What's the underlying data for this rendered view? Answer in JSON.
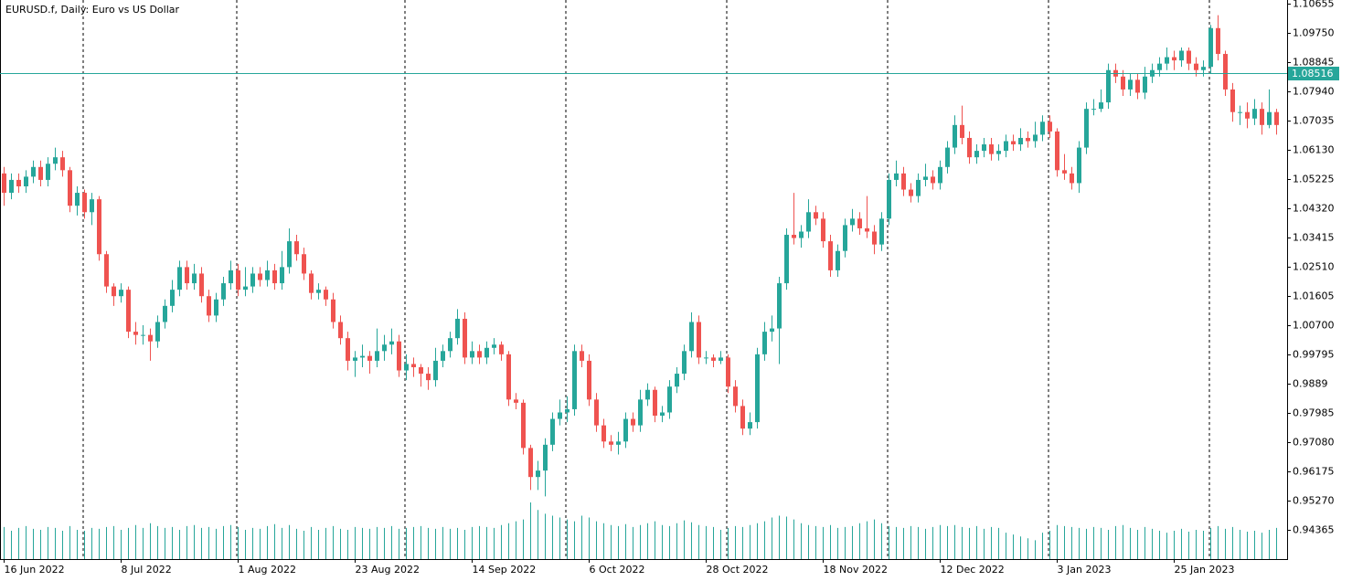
{
  "chart_data": {
    "type": "candlestick",
    "title": "EURUSD.f, Daily:  Euro vs US Dollar",
    "categories": [
      "16 Jun 2022",
      null,
      null,
      null,
      null,
      null,
      null,
      null,
      null,
      null,
      null,
      null,
      null,
      null,
      null,
      null,
      "8 Jul 2022",
      null,
      null,
      null,
      null,
      null,
      null,
      null,
      null,
      null,
      null,
      null,
      null,
      null,
      null,
      null,
      "1 Aug 2022",
      null,
      null,
      null,
      null,
      null,
      null,
      null,
      null,
      null,
      null,
      null,
      null,
      null,
      null,
      null,
      "23 Aug 2022",
      null,
      null,
      null,
      null,
      null,
      null,
      null,
      null,
      null,
      null,
      null,
      null,
      null,
      null,
      null,
      "14 Sep 2022",
      null,
      null,
      null,
      null,
      null,
      null,
      null,
      null,
      null,
      null,
      null,
      null,
      null,
      null,
      null,
      "6 Oct 2022",
      null,
      null,
      null,
      null,
      null,
      null,
      null,
      null,
      null,
      null,
      null,
      null,
      null,
      null,
      null,
      "28 Oct 2022",
      null,
      null,
      null,
      null,
      null,
      null,
      null,
      null,
      null,
      null,
      null,
      null,
      null,
      null,
      null,
      "18 Nov 2022",
      null,
      null,
      null,
      null,
      null,
      null,
      null,
      null,
      null,
      null,
      null,
      null,
      null,
      null,
      null,
      "12 Dec 2022",
      null,
      null,
      null,
      null,
      null,
      null,
      null,
      null,
      null,
      null,
      null,
      null,
      null,
      null,
      null,
      "3 Jan 2023",
      null,
      null,
      null,
      null,
      null,
      null,
      null,
      null,
      null,
      null,
      null,
      null,
      null,
      null,
      null,
      "25 Jan 2023",
      null,
      null,
      null,
      null,
      null,
      null,
      null,
      null,
      null,
      null,
      null,
      null,
      null,
      null
    ],
    "ohlc": [
      [
        1.054,
        1.056,
        1.044,
        1.048
      ],
      [
        1.048,
        1.054,
        1.046,
        1.052
      ],
      [
        1.052,
        1.054,
        1.048,
        1.05
      ],
      [
        1.05,
        1.055,
        1.048,
        1.053
      ],
      [
        1.053,
        1.058,
        1.051,
        1.056
      ],
      [
        1.056,
        1.058,
        1.05,
        1.052
      ],
      [
        1.052,
        1.059,
        1.05,
        1.057
      ],
      [
        1.057,
        1.062,
        1.055,
        1.059
      ],
      [
        1.059,
        1.061,
        1.053,
        1.055
      ],
      [
        1.055,
        1.056,
        1.042,
        1.044
      ],
      [
        1.044,
        1.05,
        1.041,
        1.048
      ],
      [
        1.048,
        1.049,
        1.04,
        1.042
      ],
      [
        1.042,
        1.048,
        1.038,
        1.046
      ],
      [
        1.046,
        1.047,
        1.027,
        1.029
      ],
      [
        1.029,
        1.03,
        1.017,
        1.019
      ],
      [
        1.019,
        1.02,
        1.013,
        1.016
      ],
      [
        1.016,
        1.02,
        1.014,
        1.018
      ],
      [
        1.018,
        1.019,
        1.003,
        1.005
      ],
      [
        1.005,
        1.008,
        1.001,
        1.004
      ],
      [
        1.004,
        1.007,
        1.001,
        1.004
      ],
      [
        1.004,
        1.006,
        0.996,
        1.002
      ],
      [
        1.002,
        1.01,
        1.0,
        1.008
      ],
      [
        1.008,
        1.015,
        1.006,
        1.013
      ],
      [
        1.013,
        1.021,
        1.011,
        1.018
      ],
      [
        1.018,
        1.027,
        1.016,
        1.025
      ],
      [
        1.025,
        1.027,
        1.018,
        1.02
      ],
      [
        1.02,
        1.026,
        1.018,
        1.023
      ],
      [
        1.023,
        1.025,
        1.014,
        1.016
      ],
      [
        1.016,
        1.018,
        1.008,
        1.01
      ],
      [
        1.01,
        1.017,
        1.008,
        1.015
      ],
      [
        1.015,
        1.022,
        1.013,
        1.02
      ],
      [
        1.02,
        1.027,
        1.018,
        1.024
      ],
      [
        1.024,
        1.026,
        1.016,
        1.018
      ],
      [
        1.018,
        1.025,
        1.016,
        1.019
      ],
      [
        1.019,
        1.025,
        1.017,
        1.023
      ],
      [
        1.023,
        1.025,
        1.019,
        1.021
      ],
      [
        1.021,
        1.027,
        1.019,
        1.024
      ],
      [
        1.024,
        1.026,
        1.018,
        1.02
      ],
      [
        1.02,
        1.03,
        1.018,
        1.025
      ],
      [
        1.025,
        1.037,
        1.023,
        1.033
      ],
      [
        1.033,
        1.035,
        1.027,
        1.029
      ],
      [
        1.029,
        1.031,
        1.021,
        1.023
      ],
      [
        1.023,
        1.024,
        1.015,
        1.017
      ],
      [
        1.017,
        1.02,
        1.015,
        1.018
      ],
      [
        1.018,
        1.019,
        1.013,
        1.015
      ],
      [
        1.015,
        1.017,
        1.006,
        1.008
      ],
      [
        1.008,
        1.01,
        1.001,
        1.003
      ],
      [
        1.003,
        1.005,
        0.993,
        0.996
      ],
      [
        0.996,
        0.999,
        0.991,
        0.997
      ],
      [
        0.997,
        1.001,
        0.994,
        0.9975
      ],
      [
        0.9975,
        0.999,
        0.992,
        0.996
      ],
      [
        0.996,
        1.006,
        0.994,
        0.999
      ],
      [
        0.999,
        1.004,
        0.996,
        1.001
      ],
      [
        1.001,
        1.006,
        0.998,
        1.002
      ],
      [
        1.002,
        1.004,
        0.991,
        0.993
      ],
      [
        0.993,
        0.998,
        0.99,
        0.995
      ],
      [
        0.995,
        0.997,
        0.991,
        0.994
      ],
      [
        0.994,
        0.995,
        0.988,
        0.992
      ],
      [
        0.992,
        0.994,
        0.987,
        0.99
      ],
      [
        0.99,
        1.0,
        0.988,
        0.996
      ],
      [
        0.996,
        1.001,
        0.994,
        0.999
      ],
      [
        0.999,
        1.005,
        0.997,
        1.003
      ],
      [
        1.003,
        1.012,
        1.001,
        1.009
      ],
      [
        1.009,
        1.011,
        0.995,
        0.997
      ],
      [
        0.997,
        1.002,
        0.995,
        0.999
      ],
      [
        0.999,
        1.001,
        0.995,
        0.997
      ],
      [
        0.997,
        1.002,
        0.995,
        1.0
      ],
      [
        1.0,
        1.003,
        0.998,
        1.001
      ],
      [
        1.001,
        1.002,
        0.996,
        0.998
      ],
      [
        0.998,
        0.999,
        0.982,
        0.984
      ],
      [
        0.984,
        0.986,
        0.981,
        0.983
      ],
      [
        0.983,
        0.984,
        0.967,
        0.969
      ],
      [
        0.969,
        0.97,
        0.956,
        0.96
      ],
      [
        0.96,
        0.965,
        0.956,
        0.962
      ],
      [
        0.962,
        0.972,
        0.954,
        0.97
      ],
      [
        0.97,
        0.98,
        0.968,
        0.978
      ],
      [
        0.978,
        0.984,
        0.976,
        0.98
      ],
      [
        0.98,
        0.985,
        0.977,
        0.981
      ],
      [
        0.981,
        1.001,
        0.979,
        0.999
      ],
      [
        0.999,
        1.001,
        0.994,
        0.996
      ],
      [
        0.996,
        0.998,
        0.982,
        0.984
      ],
      [
        0.984,
        0.986,
        0.974,
        0.976
      ],
      [
        0.976,
        0.978,
        0.969,
        0.971
      ],
      [
        0.971,
        0.973,
        0.968,
        0.97
      ],
      [
        0.97,
        0.974,
        0.967,
        0.971
      ],
      [
        0.971,
        0.98,
        0.969,
        0.978
      ],
      [
        0.978,
        0.98,
        0.974,
        0.976
      ],
      [
        0.976,
        0.987,
        0.974,
        0.984
      ],
      [
        0.984,
        0.989,
        0.982,
        0.987
      ],
      [
        0.987,
        0.988,
        0.977,
        0.979
      ],
      [
        0.979,
        0.982,
        0.977,
        0.98
      ],
      [
        0.98,
        0.99,
        0.978,
        0.988
      ],
      [
        0.988,
        0.994,
        0.986,
        0.992
      ],
      [
        0.992,
        1.001,
        0.99,
        0.999
      ],
      [
        0.999,
        1.011,
        0.997,
        1.008
      ],
      [
        1.008,
        1.01,
        0.995,
        0.997
      ],
      [
        0.997,
        0.999,
        0.995,
        0.997
      ],
      [
        0.997,
        0.998,
        0.994,
        0.996
      ],
      [
        0.996,
        0.999,
        0.995,
        0.997
      ],
      [
        0.997,
        0.998,
        0.986,
        0.988
      ],
      [
        0.988,
        0.99,
        0.98,
        0.982
      ],
      [
        0.982,
        0.984,
        0.973,
        0.975
      ],
      [
        0.975,
        0.98,
        0.973,
        0.977
      ],
      [
        0.977,
        1.0,
        0.975,
        0.998
      ],
      [
        0.998,
        1.008,
        0.996,
        1.005
      ],
      [
        1.005,
        1.01,
        1.002,
        1.006
      ],
      [
        1.006,
        1.022,
        0.995,
        1.02
      ],
      [
        1.02,
        1.037,
        1.018,
        1.035
      ],
      [
        1.035,
        1.048,
        1.032,
        1.034
      ],
      [
        1.034,
        1.038,
        1.031,
        1.036
      ],
      [
        1.036,
        1.046,
        1.034,
        1.042
      ],
      [
        1.042,
        1.044,
        1.038,
        1.04
      ],
      [
        1.04,
        1.042,
        1.031,
        1.033
      ],
      [
        1.033,
        1.035,
        1.022,
        1.024
      ],
      [
        1.024,
        1.032,
        1.022,
        1.03
      ],
      [
        1.03,
        1.04,
        1.028,
        1.038
      ],
      [
        1.038,
        1.043,
        1.036,
        1.04
      ],
      [
        1.04,
        1.042,
        1.035,
        1.037
      ],
      [
        1.037,
        1.047,
        1.034,
        1.036
      ],
      [
        1.036,
        1.038,
        1.029,
        1.032
      ],
      [
        1.032,
        1.042,
        1.03,
        1.04
      ],
      [
        1.04,
        1.054,
        1.038,
        1.052
      ],
      [
        1.052,
        1.058,
        1.05,
        1.054
      ],
      [
        1.054,
        1.056,
        1.047,
        1.049
      ],
      [
        1.049,
        1.051,
        1.045,
        1.047
      ],
      [
        1.047,
        1.054,
        1.045,
        1.052
      ],
      [
        1.052,
        1.057,
        1.05,
        1.053
      ],
      [
        1.053,
        1.055,
        1.049,
        1.051
      ],
      [
        1.051,
        1.058,
        1.049,
        1.056
      ],
      [
        1.056,
        1.064,
        1.054,
        1.062
      ],
      [
        1.062,
        1.072,
        1.06,
        1.069
      ],
      [
        1.069,
        1.075,
        1.063,
        1.065
      ],
      [
        1.065,
        1.067,
        1.057,
        1.059
      ],
      [
        1.059,
        1.063,
        1.057,
        1.061
      ],
      [
        1.061,
        1.065,
        1.059,
        1.063
      ],
      [
        1.063,
        1.065,
        1.058,
        1.06
      ],
      [
        1.06,
        1.063,
        1.058,
        1.061
      ],
      [
        1.061,
        1.066,
        1.059,
        1.064
      ],
      [
        1.064,
        1.066,
        1.061,
        1.063
      ],
      [
        1.063,
        1.068,
        1.061,
        1.065
      ],
      [
        1.065,
        1.067,
        1.062,
        1.064
      ],
      [
        1.064,
        1.07,
        1.062,
        1.066
      ],
      [
        1.066,
        1.072,
        1.064,
        1.07
      ],
      [
        1.07,
        1.072,
        1.065,
        1.067
      ],
      [
        1.067,
        1.068,
        1.053,
        1.055
      ],
      [
        1.055,
        1.06,
        1.052,
        1.054
      ],
      [
        1.054,
        1.056,
        1.049,
        1.051
      ],
      [
        1.051,
        1.064,
        1.048,
        1.062
      ],
      [
        1.062,
        1.076,
        1.06,
        1.074
      ],
      [
        1.074,
        1.077,
        1.072,
        1.074
      ],
      [
        1.074,
        1.08,
        1.073,
        1.076
      ],
      [
        1.076,
        1.088,
        1.074,
        1.086
      ],
      [
        1.086,
        1.088,
        1.082,
        1.084
      ],
      [
        1.084,
        1.086,
        1.078,
        1.08
      ],
      [
        1.08,
        1.085,
        1.078,
        1.083
      ],
      [
        1.083,
        1.085,
        1.077,
        1.079
      ],
      [
        1.079,
        1.087,
        1.077,
        1.084
      ],
      [
        1.084,
        1.088,
        1.082,
        1.086
      ],
      [
        1.086,
        1.09,
        1.084,
        1.088
      ],
      [
        1.088,
        1.093,
        1.086,
        1.09
      ],
      [
        1.09,
        1.092,
        1.086,
        1.089
      ],
      [
        1.089,
        1.093,
        1.087,
        1.092
      ],
      [
        1.092,
        1.093,
        1.086,
        1.088
      ],
      [
        1.088,
        1.09,
        1.084,
        1.086
      ],
      [
        1.086,
        1.089,
        1.084,
        1.087
      ],
      [
        1.087,
        1.1,
        1.085,
        1.099
      ],
      [
        1.099,
        1.103,
        1.089,
        1.091
      ],
      [
        1.091,
        1.092,
        1.078,
        1.08
      ],
      [
        1.08,
        1.082,
        1.07,
        1.073
      ],
      [
        1.073,
        1.075,
        1.069,
        1.073
      ],
      [
        1.073,
        1.076,
        1.068,
        1.071
      ],
      [
        1.071,
        1.077,
        1.069,
        1.074
      ],
      [
        1.074,
        1.076,
        1.066,
        1.069
      ],
      [
        1.069,
        1.08,
        1.068,
        1.073
      ],
      [
        1.073,
        1.074,
        1.066,
        1.069
      ]
    ],
    "volume": [
      34,
      30,
      33,
      35,
      32,
      31,
      34,
      33,
      30,
      35,
      31,
      30,
      33,
      32,
      34,
      35,
      31,
      33,
      36,
      33,
      38,
      35,
      33,
      34,
      31,
      35,
      36,
      33,
      34,
      32,
      35,
      36,
      34,
      31,
      33,
      32,
      35,
      37,
      33,
      36,
      32,
      30,
      34,
      31,
      33,
      35,
      32,
      31,
      34,
      33,
      32,
      34,
      33,
      35,
      32,
      33,
      34,
      35,
      33,
      32,
      34,
      32,
      33,
      31,
      34,
      35,
      34,
      33,
      36,
      38,
      40,
      42,
      60,
      52,
      48,
      46,
      44,
      42,
      40,
      46,
      44,
      40,
      38,
      36,
      35,
      37,
      34,
      36,
      38,
      40,
      36,
      35,
      38,
      41,
      39,
      36,
      35,
      34,
      31,
      33,
      35,
      34,
      36,
      38,
      40,
      44,
      46,
      45,
      42,
      38,
      36,
      35,
      34,
      36,
      33,
      34,
      35,
      38,
      40,
      42,
      38,
      35,
      34,
      33,
      35,
      34,
      32,
      34,
      36,
      35,
      36,
      34,
      33,
      35,
      32,
      34,
      33,
      28,
      26,
      24,
      22,
      20,
      28,
      30,
      36,
      35,
      34,
      33,
      32,
      34,
      33,
      31,
      35,
      36,
      33,
      31,
      34,
      32,
      30,
      28,
      30,
      32,
      29,
      31,
      30,
      33,
      35,
      32,
      34,
      31,
      29,
      30,
      28,
      31,
      33
    ],
    "up_color": "#26a69a",
    "down_color": "#ef5350",
    "volume_color": "#26a69a",
    "ylim": [
      0.9346,
      1.1077
    ],
    "yticks": [
      1.10655,
      {
        "value": 1.0975,
        "label": "1.09750"
      },
      1.08845,
      {
        "value": 1.0794,
        "label": "1.07940"
      },
      1.07035,
      {
        "value": 1.0613,
        "label": "1.06130"
      },
      1.05225,
      {
        "value": 1.0432,
        "label": "1.04320"
      },
      1.03415,
      {
        "value": 1.0251,
        "label": "1.02510"
      },
      1.01605,
      {
        "value": 1.007,
        "label": "1.00700"
      },
      0.99795,
      0.9889,
      0.97985,
      {
        "value": 0.9708,
        "label": "0.97080"
      },
      0.96175,
      {
        "value": 0.9527,
        "label": "0.95270"
      },
      0.94365
    ],
    "price_line": {
      "value": 1.08516,
      "color": "#26a69a"
    }
  }
}
